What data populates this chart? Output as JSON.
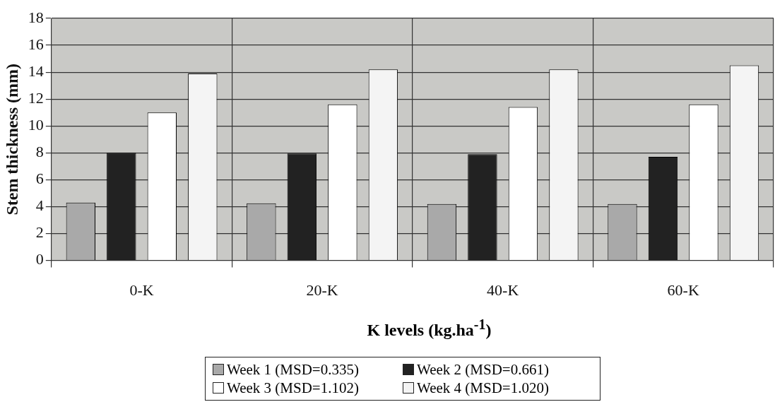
{
  "chart_data": {
    "type": "bar",
    "xlabel": "K levels (kg.ha$^{-1}$)",
    "ylabel": "Stem thickness (mm)",
    "categories": [
      "0-K",
      "20-K",
      "40-K",
      "60-K"
    ],
    "series": [
      {
        "name": "Week 1 (MSD=0.335)",
        "color": "#a9a9a9",
        "values": [
          4.3,
          4.25,
          4.2,
          4.2
        ]
      },
      {
        "name": "Week 2 (MSD=0.661)",
        "color": "#222222",
        "values": [
          8.0,
          7.95,
          7.9,
          7.7
        ]
      },
      {
        "name": "Week 3 (MSD=1.102)",
        "color": "#ffffff",
        "values": [
          11.0,
          11.6,
          11.4,
          11.6
        ]
      },
      {
        "name": "Week 4 (MSD=1.020)",
        "color": "#f4f4f4",
        "values": [
          13.9,
          14.2,
          14.2,
          14.5
        ]
      }
    ],
    "ylim": [
      0,
      18
    ],
    "yticks": [
      0,
      2,
      4,
      6,
      8,
      10,
      12,
      14,
      16,
      18
    ],
    "grid": true,
    "legend": "bottom"
  }
}
